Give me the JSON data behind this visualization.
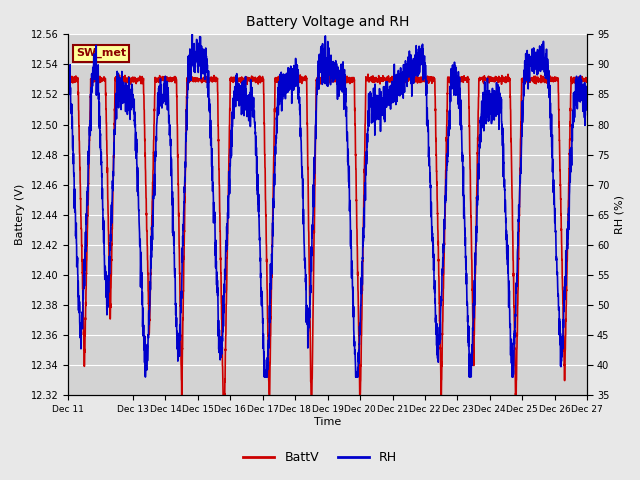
{
  "title": "Battery Voltage and RH",
  "xlabel": "Time",
  "ylabel_left": "Battery (V)",
  "ylabel_right": "RH (%)",
  "ylim_left": [
    12.32,
    12.56
  ],
  "ylim_right": [
    35,
    95
  ],
  "yticks_left": [
    12.32,
    12.34,
    12.36,
    12.38,
    12.4,
    12.42,
    12.44,
    12.46,
    12.48,
    12.5,
    12.52,
    12.54,
    12.56
  ],
  "yticks_right": [
    35,
    40,
    45,
    50,
    55,
    60,
    65,
    70,
    75,
    80,
    85,
    90,
    95
  ],
  "xtick_positions": [
    0,
    2,
    3,
    4,
    5,
    6,
    7,
    8,
    9,
    10,
    11,
    12,
    13,
    14,
    15,
    16
  ],
  "xtick_labels": [
    "Dec 11",
    "Dec 13",
    "Dec 14",
    "Dec 15",
    "Dec 16",
    "Dec 17",
    "Dec 18",
    "Dec 19",
    "Dec 20",
    "Dec 21",
    "Dec 22",
    "Dec 23",
    "Dec 24",
    "Dec 25",
    "Dec 26",
    "Dec 27"
  ],
  "annotation_text": "SW_met",
  "annotation_bg": "#FFFF99",
  "annotation_border": "#8B0000",
  "fig_bg_color": "#E8E8E8",
  "plot_bg_color": "#D3D3D3",
  "grid_color": "#FFFFFF",
  "battv_color": "#CC0000",
  "rh_color": "#0000CC",
  "line_width": 1.2,
  "n_points": 3200,
  "n_days": 16
}
